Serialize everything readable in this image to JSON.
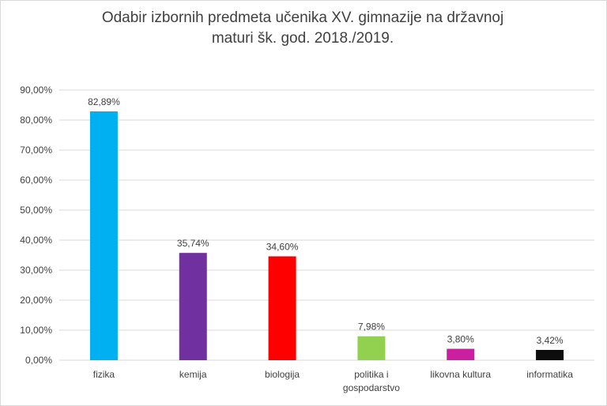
{
  "chart_data": {
    "type": "bar",
    "title_lines": [
      "Odabir izbornih predmeta učenika XV. gimnazije na državnoj",
      "maturi šk. god. 2018./2019."
    ],
    "categories": [
      [
        "fizika"
      ],
      [
        "kemija"
      ],
      [
        "biologija"
      ],
      [
        "politika i",
        "gospodarstvo"
      ],
      [
        "likovna kultura"
      ],
      [
        "informatika"
      ]
    ],
    "values": [
      82.89,
      35.74,
      34.6,
      7.98,
      3.8,
      3.42
    ],
    "data_labels": [
      "82,89%",
      "35,74%",
      "34,60%",
      "7,98%",
      "3,80%",
      "3,42%"
    ],
    "bar_colors": [
      "#00b0f0",
      "#7030a0",
      "#ff0000",
      "#92d050",
      "#cc1ea0",
      "#0d0d0d"
    ],
    "ylim": [
      0,
      90
    ],
    "y_ticks": [
      0,
      10,
      20,
      30,
      40,
      50,
      60,
      70,
      80,
      90
    ],
    "y_tick_labels": [
      "0,00%",
      "10,00%",
      "20,00%",
      "30,00%",
      "40,00%",
      "50,00%",
      "60,00%",
      "70,00%",
      "80,00%",
      "90,00%"
    ],
    "grid": true,
    "gridline_color": "#d9d9d9",
    "xlabel": "",
    "ylabel": ""
  }
}
